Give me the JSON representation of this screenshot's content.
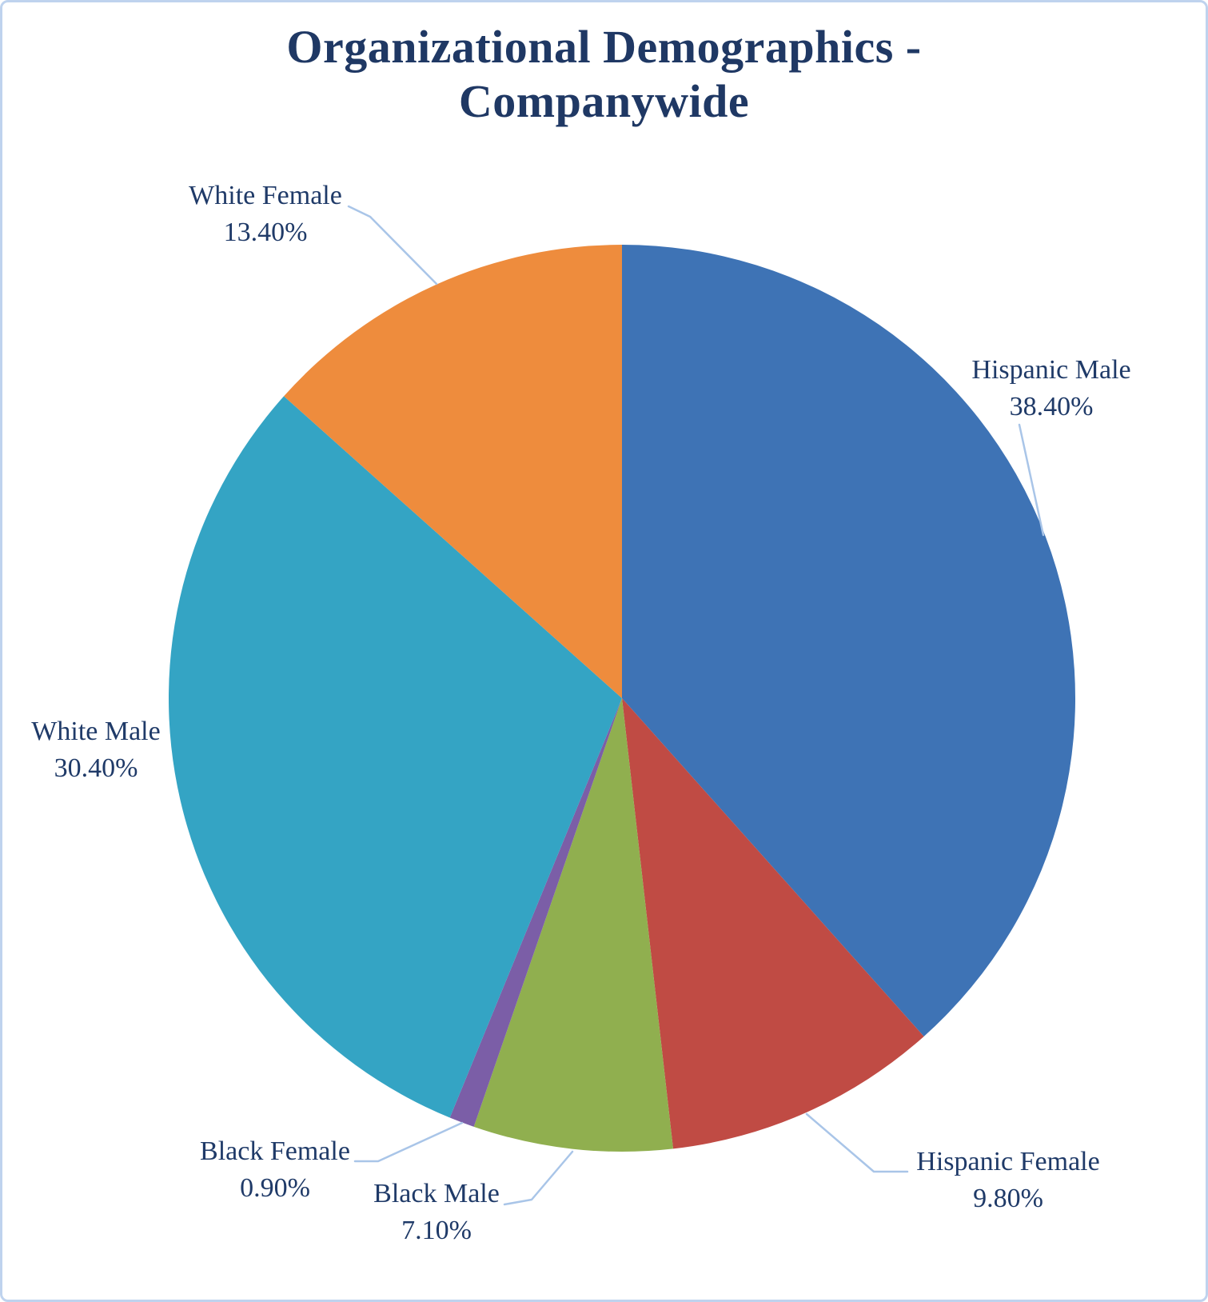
{
  "page": {
    "title_lines": [
      "Organizational Demographics -",
      "Companywide"
    ]
  },
  "chart_data": {
    "type": "pie",
    "title": "Organizational Demographics - Companywide",
    "start_angle_deg": 0,
    "direction": "clockwise",
    "legend_position": "none",
    "slices": [
      {
        "label": "Hispanic Male",
        "value": 38.4,
        "pct_label": "38.40%",
        "color": "#3E73B5"
      },
      {
        "label": "Hispanic Female",
        "value": 9.8,
        "pct_label": "9.80%",
        "color": "#C04B44"
      },
      {
        "label": "Black Male",
        "value": 7.1,
        "pct_label": "7.10%",
        "color": "#90AF4F"
      },
      {
        "label": "Black Female",
        "value": 0.9,
        "pct_label": "0.90%",
        "color": "#7B5EA7"
      },
      {
        "label": "White Male",
        "value": 30.4,
        "pct_label": "30.40%",
        "color": "#34A4C4"
      },
      {
        "label": "White Female",
        "value": 13.4,
        "pct_label": "13.40%",
        "color": "#EE8C3D"
      }
    ],
    "title_color": "#1F3864",
    "label_text_color": "#1F3A68",
    "leader_line_color": "#A9C5E8",
    "frame_border_color": "#BFD3EE",
    "background": "#FFFFFF"
  }
}
